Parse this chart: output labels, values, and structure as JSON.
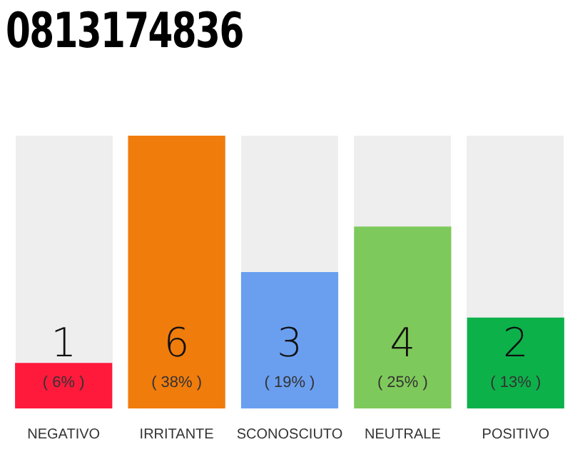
{
  "chart_data": {
    "type": "bar",
    "title": "0813174836",
    "categories": [
      "NEGATIVO",
      "IRRITANTE",
      "SCONOSCIUTO",
      "NEUTRALE",
      "POSITIVO"
    ],
    "values": [
      1,
      6,
      3,
      4,
      2
    ],
    "colors": [
      "#ff1a3c",
      "#f07c0c",
      "#6a9ff0",
      "#7ec95b",
      "#0db14a"
    ],
    "data_labels": true,
    "annotations": [
      "( 6% )",
      "( 38% )",
      "( 19% )",
      "( 25% )",
      "( 13% )"
    ],
    "grid": false,
    "legend": false
  }
}
